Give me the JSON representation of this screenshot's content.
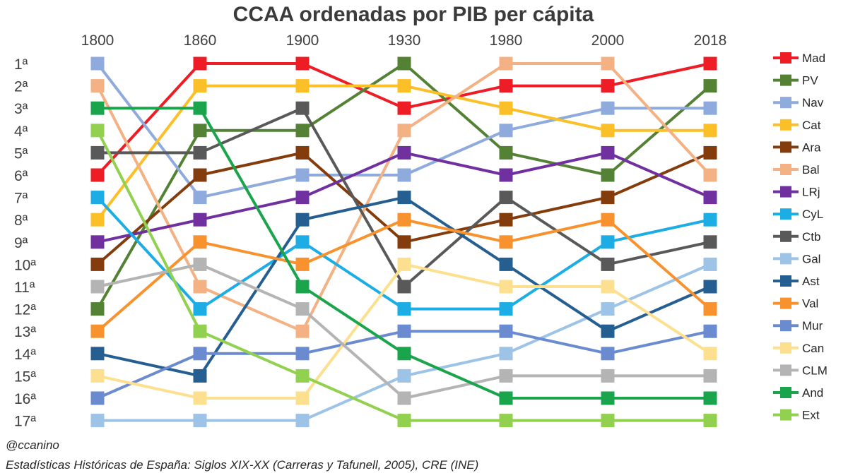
{
  "chart_data": {
    "type": "line",
    "title": "CCAA ordenadas por PIB per cápita",
    "x": [
      "1800",
      "1860",
      "1900",
      "1930",
      "1980",
      "2000",
      "2018"
    ],
    "y_tick_labels": [
      "1ª",
      "2ª",
      "3ª",
      "4ª",
      "5ª",
      "6ª",
      "7ª",
      "8ª",
      "9ª",
      "10ª",
      "11ª",
      "12ª",
      "13ª",
      "14ª",
      "15ª",
      "16ª",
      "17ª"
    ],
    "ylim": [
      1,
      17
    ],
    "y_inverted": true,
    "legend_position": "right",
    "series": [
      {
        "name": "Mad",
        "color": "#ee1c25",
        "values": [
          6,
          1,
          1,
          3,
          2,
          2,
          1
        ]
      },
      {
        "name": "PV",
        "color": "#548235",
        "values": [
          12,
          4,
          4,
          1,
          5,
          6,
          2
        ]
      },
      {
        "name": "Nav",
        "color": "#8faadc",
        "values": [
          1,
          7,
          6,
          6,
          4,
          3,
          3
        ]
      },
      {
        "name": "Cat",
        "color": "#fbbf27",
        "values": [
          8,
          2,
          2,
          2,
          3,
          4,
          4
        ]
      },
      {
        "name": "Ara",
        "color": "#843c0c",
        "values": [
          10,
          6,
          5,
          9,
          8,
          7,
          5
        ]
      },
      {
        "name": "Bal",
        "color": "#f4b183",
        "values": [
          2,
          11,
          13,
          4,
          1,
          1,
          6
        ]
      },
      {
        "name": "LRj",
        "color": "#7030a0",
        "values": [
          9,
          8,
          7,
          5,
          6,
          5,
          7
        ]
      },
      {
        "name": "CyL",
        "color": "#1cade4",
        "values": [
          7,
          12,
          9,
          12,
          12,
          9,
          8
        ]
      },
      {
        "name": "Ctb",
        "color": "#595959",
        "values": [
          5,
          5,
          3,
          11,
          7,
          10,
          9
        ]
      },
      {
        "name": "Gal",
        "color": "#9dc3e6",
        "values": [
          17,
          17,
          17,
          15,
          14,
          12,
          10
        ]
      },
      {
        "name": "Ast",
        "color": "#255e91",
        "values": [
          14,
          15,
          8,
          7,
          10,
          13,
          11
        ]
      },
      {
        "name": "Val",
        "color": "#f7922e",
        "values": [
          13,
          9,
          10,
          8,
          9,
          8,
          12
        ]
      },
      {
        "name": "Mur",
        "color": "#6b8bd0",
        "values": [
          16,
          14,
          14,
          13,
          13,
          14,
          13
        ]
      },
      {
        "name": "Can",
        "color": "#fde08f",
        "values": [
          15,
          16,
          16,
          10,
          11,
          11,
          14
        ]
      },
      {
        "name": "CLM",
        "color": "#b4b4b4",
        "values": [
          11,
          10,
          12,
          16,
          15,
          15,
          15
        ]
      },
      {
        "name": "And",
        "color": "#1aa54c",
        "values": [
          3,
          3,
          11,
          14,
          16,
          16,
          16
        ]
      },
      {
        "name": "Ext",
        "color": "#92d050",
        "values": [
          4,
          13,
          15,
          17,
          17,
          17,
          17
        ]
      }
    ]
  },
  "footer": {
    "author": "@ccanino",
    "source": "Estadísticas Históricas de España: Siglos XIX-XX (Carreras y Tafunell, 2005), CRE (INE)"
  }
}
